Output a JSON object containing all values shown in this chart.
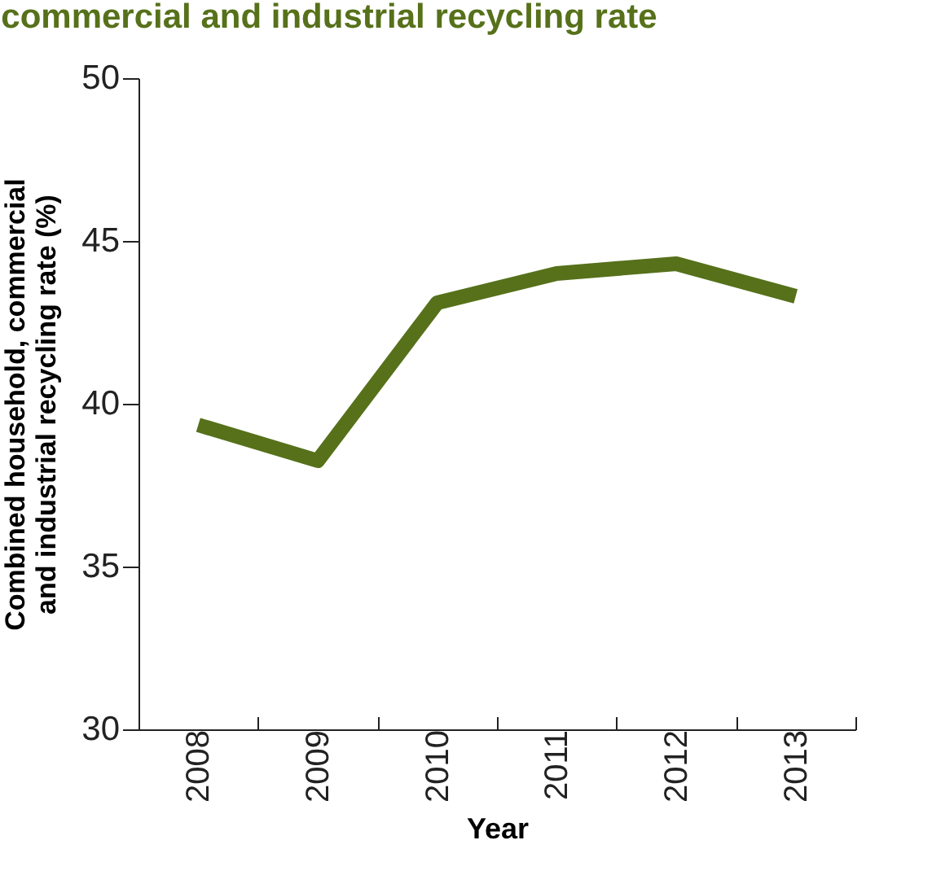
{
  "chart_data": {
    "type": "line",
    "title": "commercial and industrial recycling rate",
    "xlabel": "Year",
    "ylabel": "Combined household, commercial and industrial recycling rate (%)",
    "categories": [
      "2008",
      "2009",
      "2010",
      "2011",
      "2012",
      "2013"
    ],
    "series": [
      {
        "color": "#56711a",
        "values": [
          39.35,
          38.25,
          43.1,
          44.0,
          44.3,
          43.3
        ]
      }
    ],
    "ylim": [
      30,
      50
    ],
    "yticks": [
      30,
      35,
      40,
      45,
      50
    ],
    "grid": false,
    "legend": false,
    "marker": "none",
    "line_style": "solid"
  }
}
